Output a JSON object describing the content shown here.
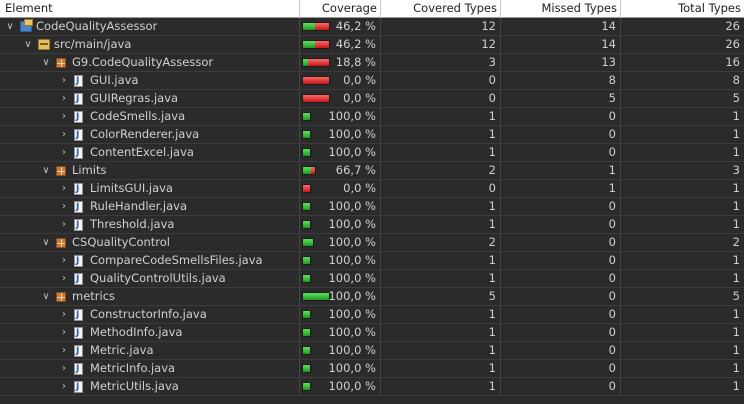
{
  "columns": {
    "element": "Element",
    "coverage": "Coverage",
    "covered": "Covered Types",
    "missed": "Missed Types",
    "total": "Total Types"
  },
  "colors": {
    "covered_bar": "#2fbf2f",
    "missed_bar": "#e03a3a",
    "background": "#2b2b2b",
    "header_bg": "#ffffff"
  },
  "rows": [
    {
      "name": "CodeQualityAssessor",
      "type": "project",
      "level": 0,
      "twisty": "expanded",
      "coverage": "46,2 %",
      "cov": 0.462,
      "covered": "12",
      "missed": "14",
      "total": "26"
    },
    {
      "name": "src/main/java",
      "type": "folder",
      "level": 1,
      "twisty": "expanded",
      "coverage": "46,2 %",
      "cov": 0.462,
      "covered": "12",
      "missed": "14",
      "total": "26"
    },
    {
      "name": "G9.CodeQualityAssessor",
      "type": "package",
      "level": 2,
      "twisty": "expanded",
      "coverage": "18,8 %",
      "cov": 0.188,
      "covered": "3",
      "missed": "13",
      "total": "16"
    },
    {
      "name": "GUI.java",
      "type": "java",
      "level": 3,
      "twisty": "collapsed",
      "coverage": "0,0 %",
      "cov": 0,
      "covered": "0",
      "missed": "8",
      "total": "8"
    },
    {
      "name": "GUIRegras.java",
      "type": "java",
      "level": 3,
      "twisty": "collapsed",
      "coverage": "0,0 %",
      "cov": 0,
      "covered": "0",
      "missed": "5",
      "total": "5"
    },
    {
      "name": "CodeSmells.java",
      "type": "java",
      "level": 3,
      "twisty": "collapsed",
      "coverage": "100,0 %",
      "cov": 1,
      "covered": "1",
      "missed": "0",
      "total": "1"
    },
    {
      "name": "ColorRenderer.java",
      "type": "java",
      "level": 3,
      "twisty": "collapsed",
      "coverage": "100,0 %",
      "cov": 1,
      "covered": "1",
      "missed": "0",
      "total": "1"
    },
    {
      "name": "ContentExcel.java",
      "type": "java",
      "level": 3,
      "twisty": "collapsed",
      "coverage": "100,0 %",
      "cov": 1,
      "covered": "1",
      "missed": "0",
      "total": "1"
    },
    {
      "name": "Limits",
      "type": "package",
      "level": 2,
      "twisty": "expanded",
      "coverage": "66,7 %",
      "cov": 0.667,
      "covered": "2",
      "missed": "1",
      "total": "3"
    },
    {
      "name": "LimitsGUI.java",
      "type": "java",
      "level": 3,
      "twisty": "collapsed",
      "coverage": "0,0 %",
      "cov": 0,
      "covered": "0",
      "missed": "1",
      "total": "1"
    },
    {
      "name": "RuleHandler.java",
      "type": "java",
      "level": 3,
      "twisty": "collapsed",
      "coverage": "100,0 %",
      "cov": 1,
      "covered": "1",
      "missed": "0",
      "total": "1"
    },
    {
      "name": "Threshold.java",
      "type": "java",
      "level": 3,
      "twisty": "collapsed",
      "coverage": "100,0 %",
      "cov": 1,
      "covered": "1",
      "missed": "0",
      "total": "1"
    },
    {
      "name": "CSQualityControl",
      "type": "package",
      "level": 2,
      "twisty": "expanded",
      "coverage": "100,0 %",
      "cov": 1,
      "covered": "2",
      "missed": "0",
      "total": "2"
    },
    {
      "name": "CompareCodeSmellsFiles.java",
      "type": "java",
      "level": 3,
      "twisty": "collapsed",
      "coverage": "100,0 %",
      "cov": 1,
      "covered": "1",
      "missed": "0",
      "total": "1"
    },
    {
      "name": "QualityControlUtils.java",
      "type": "java",
      "level": 3,
      "twisty": "collapsed",
      "coverage": "100,0 %",
      "cov": 1,
      "covered": "1",
      "missed": "0",
      "total": "1"
    },
    {
      "name": "metrics",
      "type": "package",
      "level": 2,
      "twisty": "expanded",
      "coverage": "100,0 %",
      "cov": 1,
      "covered": "5",
      "missed": "0",
      "total": "5"
    },
    {
      "name": "ConstructorInfo.java",
      "type": "java",
      "level": 3,
      "twisty": "collapsed",
      "coverage": "100,0 %",
      "cov": 1,
      "covered": "1",
      "missed": "0",
      "total": "1"
    },
    {
      "name": "MethodInfo.java",
      "type": "java",
      "level": 3,
      "twisty": "collapsed",
      "coverage": "100,0 %",
      "cov": 1,
      "covered": "1",
      "missed": "0",
      "total": "1"
    },
    {
      "name": "Metric.java",
      "type": "java",
      "level": 3,
      "twisty": "collapsed",
      "coverage": "100,0 %",
      "cov": 1,
      "covered": "1",
      "missed": "0",
      "total": "1"
    },
    {
      "name": "MetricInfo.java",
      "type": "java",
      "level": 3,
      "twisty": "collapsed",
      "coverage": "100,0 %",
      "cov": 1,
      "covered": "1",
      "missed": "0",
      "total": "1"
    },
    {
      "name": "MetricUtils.java",
      "type": "java",
      "level": 3,
      "twisty": "collapsed",
      "coverage": "100,0 %",
      "cov": 1,
      "covered": "1",
      "missed": "0",
      "total": "1"
    }
  ]
}
